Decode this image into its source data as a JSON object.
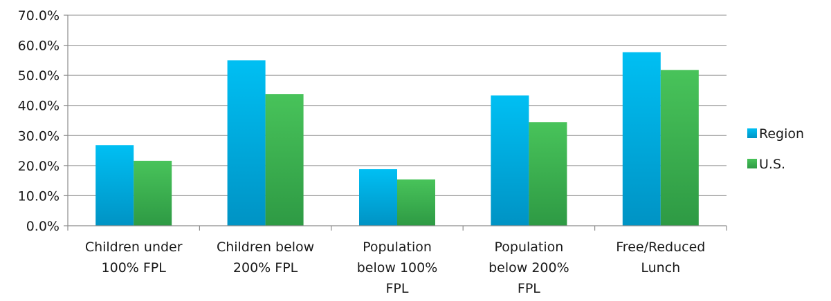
{
  "chart_data": {
    "type": "bar",
    "title": "",
    "xlabel": "",
    "ylabel": "",
    "categories": [
      [
        "Children under",
        "100% FPL"
      ],
      [
        "Children below",
        "200% FPL"
      ],
      [
        "Population",
        "below 100%",
        "FPL"
      ],
      [
        "Population",
        "below 200%",
        "FPL"
      ],
      [
        "Free/Reduced",
        "Lunch"
      ]
    ],
    "series": [
      {
        "name": "Region",
        "values": [
          26.8,
          55.0,
          18.8,
          43.3,
          57.7
        ],
        "color_top": "#00bff3",
        "color_bottom": "#0093c4"
      },
      {
        "name": "U.S.",
        "values": [
          21.6,
          43.8,
          15.4,
          34.4,
          51.8
        ],
        "color_top": "#48c35a",
        "color_bottom": "#2e9a44"
      }
    ],
    "ylim": [
      0,
      70
    ],
    "yticks": [
      "0.0%",
      "10.0%",
      "20.0%",
      "30.0%",
      "40.0%",
      "50.0%",
      "60.0%",
      "70.0%"
    ],
    "grid": true,
    "legend_position": "right"
  }
}
